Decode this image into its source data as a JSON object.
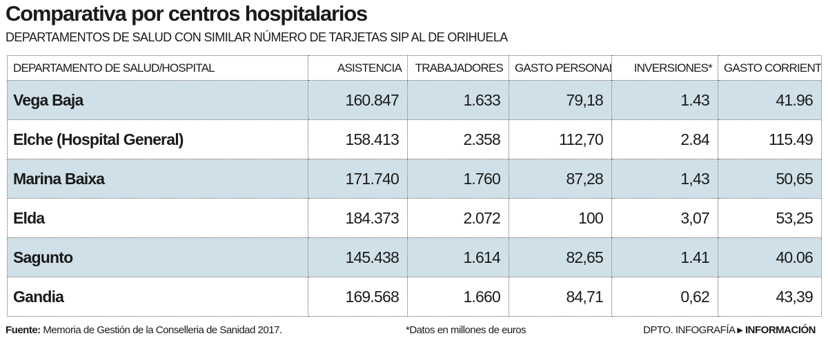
{
  "title": "Comparativa por centros hospitalarios",
  "subtitle": "DEPARTAMENTOS DE SALUD CON SIMILAR NÚMERO DE TARJETAS SIP AL DE ORIHUELA",
  "table": {
    "headers": [
      "DEPARTAMENTO DE SALUD/HOSPITAL",
      "ASISTENCIA",
      "TRABAJADORES",
      "GASTO PERSONAL*",
      "INVERSIONES*",
      "GASTO CORRIENTE*"
    ],
    "rows": [
      [
        "Vega Baja",
        "160.847",
        "1.633",
        "79,18",
        "1.43",
        "41.96"
      ],
      [
        "Elche (Hospital General)",
        "158.413",
        "2.358",
        "112,70",
        "2.84",
        "115.49"
      ],
      [
        "Marina Baixa",
        "171.740",
        "1.760",
        "87,28",
        "1,43",
        "50,65"
      ],
      [
        "Elda",
        "184.373",
        "2.072",
        "100",
        "3,07",
        "53,25"
      ],
      [
        "Sagunto",
        "145.438",
        "1.614",
        "82,65",
        "1.41",
        "40.06"
      ],
      [
        "Gandia",
        "169.568",
        "1.660",
        "84,71",
        "0,62",
        "43,39"
      ]
    ]
  },
  "footer": {
    "source_label": "Fuente:",
    "source_text": " Memoria de Gestión de la Conselleria de Sanidad 2017.",
    "note": "*Datos en millones de euros",
    "credit": "DPTO. INFOGRAFÍA",
    "brand": "INFORMACIÓN"
  },
  "colors": {
    "shaded_row": "#cfe0e8"
  }
}
